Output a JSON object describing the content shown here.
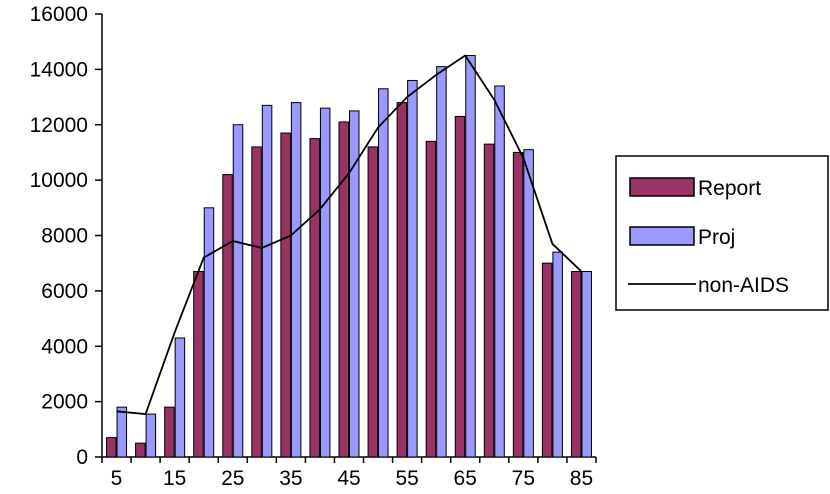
{
  "chart_data": {
    "type": "bar",
    "title": "",
    "xlabel": "",
    "ylabel": "",
    "x": [
      5,
      10,
      15,
      20,
      25,
      30,
      35,
      40,
      45,
      50,
      55,
      60,
      65,
      70,
      75,
      80,
      85
    ],
    "x_tick_labels": [
      "5",
      "15",
      "25",
      "35",
      "45",
      "55",
      "65",
      "75",
      "85"
    ],
    "x_tick_values": [
      5,
      15,
      25,
      35,
      45,
      55,
      65,
      75,
      85
    ],
    "ylim": [
      0,
      16000
    ],
    "y_ticks": [
      0,
      2000,
      4000,
      6000,
      8000,
      10000,
      12000,
      14000,
      16000
    ],
    "y_tick_labels": [
      "0",
      "2000",
      "4000",
      "6000",
      "8000",
      "10000",
      "12000",
      "14000",
      "16000"
    ],
    "grid": false,
    "legend_position": "right",
    "series": [
      {
        "name": "Report",
        "kind": "bar",
        "color": "#993366",
        "values": [
          700,
          500,
          1800,
          6700,
          10200,
          11200,
          11700,
          11500,
          12100,
          11200,
          12800,
          11400,
          12300,
          11300,
          11000,
          7000,
          6700
        ]
      },
      {
        "name": "Proj",
        "kind": "bar",
        "color": "#9999ff",
        "values": [
          1800,
          1550,
          4300,
          9000,
          12000,
          12700,
          12800,
          12600,
          12500,
          13300,
          13600,
          14100,
          14500,
          13400,
          11100,
          7400,
          6700
        ]
      },
      {
        "name": "non-AIDS",
        "kind": "line",
        "color": "#000000",
        "values": [
          1650,
          1550,
          4500,
          7200,
          7800,
          7550,
          8000,
          8950,
          10250,
          11900,
          13000,
          13800,
          14500,
          12900,
          10800,
          7700,
          6700
        ]
      }
    ]
  }
}
